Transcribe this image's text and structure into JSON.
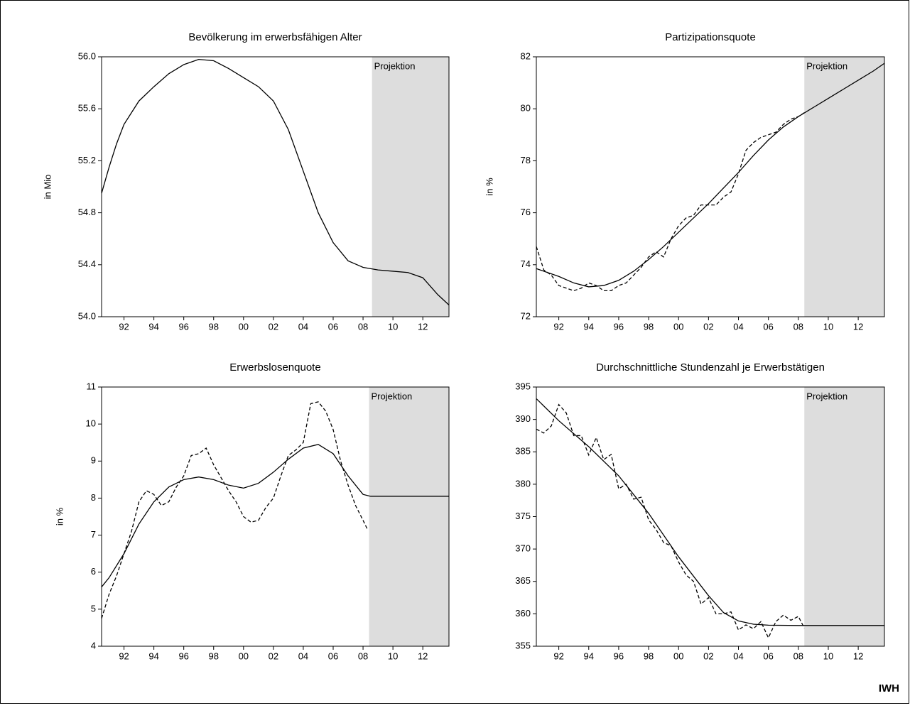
{
  "chart_data": [
    {
      "type": "line",
      "title": "Bevölkerung im erwerbsfähigen Alter",
      "ylabel": "in Mio",
      "xlim": [
        1990.5,
        2013.75
      ],
      "ylim": [
        54,
        56
      ],
      "xticks": [
        {
          "value": 1992,
          "label": "92"
        },
        {
          "value": 1994,
          "label": "94"
        },
        {
          "value": 1996,
          "label": "96"
        },
        {
          "value": 1998,
          "label": "98"
        },
        {
          "value": 2000,
          "label": "00"
        },
        {
          "value": 2002,
          "label": "02"
        },
        {
          "value": 2004,
          "label": "04"
        },
        {
          "value": 2006,
          "label": "06"
        },
        {
          "value": 2008,
          "label": "08"
        },
        {
          "value": 2010,
          "label": "10"
        },
        {
          "value": 2012,
          "label": "12"
        }
      ],
      "yticks": [
        {
          "value": 54,
          "label": "54.0"
        },
        54.4,
        54.8,
        55.2,
        55.6,
        {
          "value": 56,
          "label": "56.0"
        }
      ],
      "projection": {
        "label": "Projektion",
        "from": 2008.6
      },
      "series": [
        {
          "color": "#000000",
          "dashed": false,
          "x": [
            1990.5,
            1991,
            1991.5,
            1992,
            1993,
            1994,
            1995,
            1996,
            1997,
            1998,
            1999,
            2000,
            2001,
            2002,
            2003,
            2004,
            2005,
            2006,
            2007,
            2008,
            2009,
            2010,
            2011,
            2012,
            2013,
            2013.75
          ],
          "values": [
            54.95,
            55.15,
            55.33,
            55.48,
            55.66,
            55.77,
            55.87,
            55.94,
            55.98,
            55.97,
            55.91,
            55.84,
            55.77,
            55.66,
            55.44,
            55.12,
            54.8,
            54.57,
            54.43,
            54.38,
            54.36,
            54.35,
            54.34,
            54.3,
            54.17,
            54.09
          ]
        }
      ]
    },
    {
      "type": "line",
      "title": "Partizipationsquote",
      "ylabel": "in %",
      "xlim": [
        1990.5,
        2013.75
      ],
      "ylim": [
        72,
        82
      ],
      "xticks": [
        {
          "value": 1992,
          "label": "92"
        },
        {
          "value": 1994,
          "label": "94"
        },
        {
          "value": 1996,
          "label": "96"
        },
        {
          "value": 1998,
          "label": "98"
        },
        {
          "value": 2000,
          "label": "00"
        },
        {
          "value": 2002,
          "label": "02"
        },
        {
          "value": 2004,
          "label": "04"
        },
        {
          "value": 2006,
          "label": "06"
        },
        {
          "value": 2008,
          "label": "08"
        },
        {
          "value": 2010,
          "label": "10"
        },
        {
          "value": 2012,
          "label": "12"
        }
      ],
      "yticks": [
        72,
        74,
        76,
        78,
        80,
        82
      ],
      "projection": {
        "label": "Projektion",
        "from": 2008.4
      },
      "series": [
        {
          "color": "#000000",
          "dashed": false,
          "x": [
            1990.5,
            1992,
            1993,
            1994,
            1995,
            1996,
            1997,
            1998,
            1999,
            2000,
            2001,
            2002,
            2003,
            2004,
            2005,
            2006,
            2007,
            2008,
            2009,
            2010,
            2011,
            2012,
            2013,
            2013.75
          ],
          "values": [
            73.85,
            73.55,
            73.3,
            73.15,
            73.2,
            73.4,
            73.75,
            74.2,
            74.7,
            75.25,
            75.8,
            76.35,
            76.95,
            77.55,
            78.2,
            78.8,
            79.3,
            79.7,
            80.05,
            80.4,
            80.75,
            81.1,
            81.45,
            81.75
          ]
        },
        {
          "color": "#000000",
          "dashed": true,
          "x": [
            1990.5,
            1991,
            1991.5,
            1992,
            1992.5,
            1993,
            1993.5,
            1994,
            1994.5,
            1995,
            1995.5,
            1996,
            1996.5,
            1997,
            1997.5,
            1998,
            1998.5,
            1999,
            1999.5,
            2000,
            2000.5,
            2001,
            2001.5,
            2002,
            2002.5,
            2003,
            2003.5,
            2004,
            2004.5,
            2005,
            2005.5,
            2006,
            2006.5,
            2007,
            2007.5,
            2008,
            2008.4
          ],
          "values": [
            74.7,
            73.8,
            73.6,
            73.2,
            73.1,
            73.0,
            73.1,
            73.3,
            73.2,
            73.0,
            73.0,
            73.2,
            73.3,
            73.6,
            73.9,
            74.3,
            74.5,
            74.3,
            75.0,
            75.5,
            75.8,
            75.9,
            76.3,
            76.3,
            76.3,
            76.6,
            76.8,
            77.5,
            78.4,
            78.7,
            78.9,
            79.0,
            79.1,
            79.4,
            79.6,
            79.7,
            79.85
          ]
        }
      ]
    },
    {
      "type": "line",
      "title": "Erwerbslosenquote",
      "ylabel": "in %",
      "xlim": [
        1990.5,
        2013.75
      ],
      "ylim": [
        4,
        11
      ],
      "xticks": [
        {
          "value": 1992,
          "label": "92"
        },
        {
          "value": 1994,
          "label": "94"
        },
        {
          "value": 1996,
          "label": "96"
        },
        {
          "value": 1998,
          "label": "98"
        },
        {
          "value": 2000,
          "label": "00"
        },
        {
          "value": 2002,
          "label": "02"
        },
        {
          "value": 2004,
          "label": "04"
        },
        {
          "value": 2006,
          "label": "06"
        },
        {
          "value": 2008,
          "label": "08"
        },
        {
          "value": 2010,
          "label": "10"
        },
        {
          "value": 2012,
          "label": "12"
        }
      ],
      "yticks": [
        4,
        5,
        6,
        7,
        8,
        9,
        10,
        11
      ],
      "projection": {
        "label": "Projektion",
        "from": 2008.4
      },
      "series": [
        {
          "color": "#000000",
          "dashed": false,
          "x": [
            1990.5,
            1991,
            1992,
            1993,
            1994,
            1995,
            1996,
            1997,
            1998,
            1999,
            2000,
            2001,
            2002,
            2003,
            2004,
            2005,
            2006,
            2007,
            2008,
            2008.5,
            2010,
            2012,
            2013.75
          ],
          "values": [
            5.6,
            5.85,
            6.5,
            7.3,
            7.9,
            8.3,
            8.5,
            8.57,
            8.5,
            8.35,
            8.27,
            8.4,
            8.7,
            9.05,
            9.35,
            9.45,
            9.2,
            8.6,
            8.1,
            8.05,
            8.05,
            8.05,
            8.05
          ]
        },
        {
          "color": "#000000",
          "dashed": true,
          "x": [
            1990.5,
            1991,
            1991.5,
            1992,
            1992.5,
            1993,
            1993.5,
            1994,
            1994.5,
            1995,
            1995.5,
            1996,
            1996.5,
            1997,
            1997.5,
            1998,
            1998.5,
            1999,
            1999.5,
            2000,
            2000.5,
            2001,
            2001.5,
            2002,
            2002.5,
            2003,
            2003.5,
            2004,
            2004.5,
            2005,
            2005.5,
            2006,
            2006.5,
            2007,
            2007.5,
            2008,
            2008.3
          ],
          "values": [
            4.75,
            5.4,
            5.9,
            6.5,
            7.1,
            7.9,
            8.2,
            8.1,
            7.8,
            7.9,
            8.3,
            8.6,
            9.15,
            9.2,
            9.35,
            8.9,
            8.55,
            8.2,
            7.9,
            7.5,
            7.35,
            7.4,
            7.75,
            8.0,
            8.6,
            9.15,
            9.3,
            9.5,
            10.55,
            10.6,
            10.35,
            9.85,
            9.0,
            8.35,
            7.8,
            7.4,
            7.15
          ]
        }
      ]
    },
    {
      "type": "line",
      "title": "Durchschnittliche Stundenzahl je Erwerbstätigen",
      "xlim": [
        1990.5,
        2013.75
      ],
      "ylim": [
        355,
        395
      ],
      "xticks": [
        {
          "value": 1992,
          "label": "92"
        },
        {
          "value": 1994,
          "label": "94"
        },
        {
          "value": 1996,
          "label": "96"
        },
        {
          "value": 1998,
          "label": "98"
        },
        {
          "value": 2000,
          "label": "00"
        },
        {
          "value": 2002,
          "label": "02"
        },
        {
          "value": 2004,
          "label": "04"
        },
        {
          "value": 2006,
          "label": "06"
        },
        {
          "value": 2008,
          "label": "08"
        },
        {
          "value": 2010,
          "label": "10"
        },
        {
          "value": 2012,
          "label": "12"
        }
      ],
      "yticks": [
        355,
        360,
        365,
        370,
        375,
        380,
        385,
        390,
        395
      ],
      "projection": {
        "label": "Projektion",
        "from": 2008.4
      },
      "series": [
        {
          "color": "#000000",
          "dashed": false,
          "x": [
            1990.5,
            1992,
            1994,
            1996,
            1998,
            2000,
            2002,
            2003,
            2004,
            2005,
            2006,
            2008,
            2013.75
          ],
          "values": [
            393.2,
            389.8,
            385.8,
            381.3,
            375.5,
            368.8,
            362.8,
            360.2,
            358.9,
            358.4,
            358.25,
            358.2,
            358.2
          ]
        },
        {
          "color": "#000000",
          "dashed": true,
          "x": [
            1990.5,
            1991,
            1991.5,
            1992,
            1992.5,
            1993,
            1993.5,
            1994,
            1994.5,
            1995,
            1995.5,
            1996,
            1996.5,
            1997,
            1997.5,
            1998,
            1998.5,
            1999,
            1999.5,
            2000,
            2000.5,
            2001,
            2001.5,
            2002,
            2002.5,
            2003,
            2003.5,
            2004,
            2004.5,
            2005,
            2005.5,
            2006,
            2006.5,
            2007,
            2007.5,
            2008,
            2008.4
          ],
          "values": [
            388.5,
            387.9,
            389,
            392.3,
            391,
            387.5,
            387.5,
            384.5,
            387.2,
            383.8,
            384.6,
            379.3,
            380,
            377.7,
            378,
            374.5,
            373,
            371,
            370.5,
            368,
            366,
            365,
            361.5,
            362.5,
            360,
            360,
            360.3,
            357.5,
            358.3,
            357.7,
            358.8,
            356.3,
            358.8,
            359.8,
            359,
            359.6,
            357.8
          ]
        }
      ]
    }
  ],
  "footer": "IWH"
}
